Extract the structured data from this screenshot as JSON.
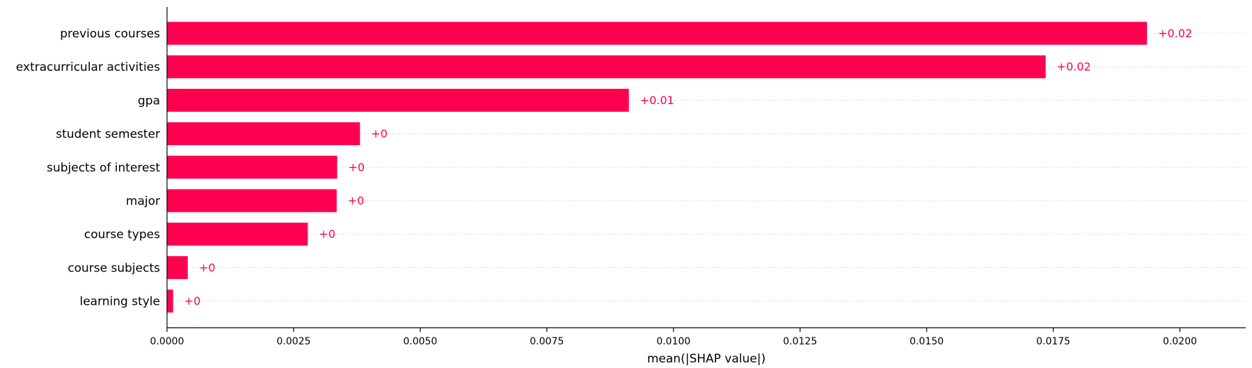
{
  "chart_data": {
    "type": "bar",
    "orientation": "horizontal",
    "categories": [
      "previous courses",
      "extracurricular activities",
      "gpa",
      "student semester",
      "subjects of interest",
      "major",
      "course types",
      "course subjects",
      "learning style"
    ],
    "values": [
      0.01935,
      0.01735,
      0.00912,
      0.00381,
      0.00336,
      0.00335,
      0.00278,
      0.00041,
      0.00012
    ],
    "value_labels": [
      "+0.02",
      "+0.02",
      "+0.01",
      "+0",
      "+0",
      "+0",
      "+0",
      "+0",
      "+0"
    ],
    "xlabel": "mean(|SHAP value|)",
    "ylabel": "",
    "xlim": [
      0,
      0.0213
    ],
    "xticks": [
      0.0,
      0.0025,
      0.005,
      0.0075,
      0.01,
      0.0125,
      0.015,
      0.0175,
      0.02
    ],
    "xtick_labels": [
      "0.0000",
      "0.0025",
      "0.0050",
      "0.0075",
      "0.0100",
      "0.0125",
      "0.0150",
      "0.0175",
      "0.0200"
    ],
    "grid": "horizontal dotted",
    "bar_color": "#ff0051",
    "label_color": "#ff0051"
  }
}
